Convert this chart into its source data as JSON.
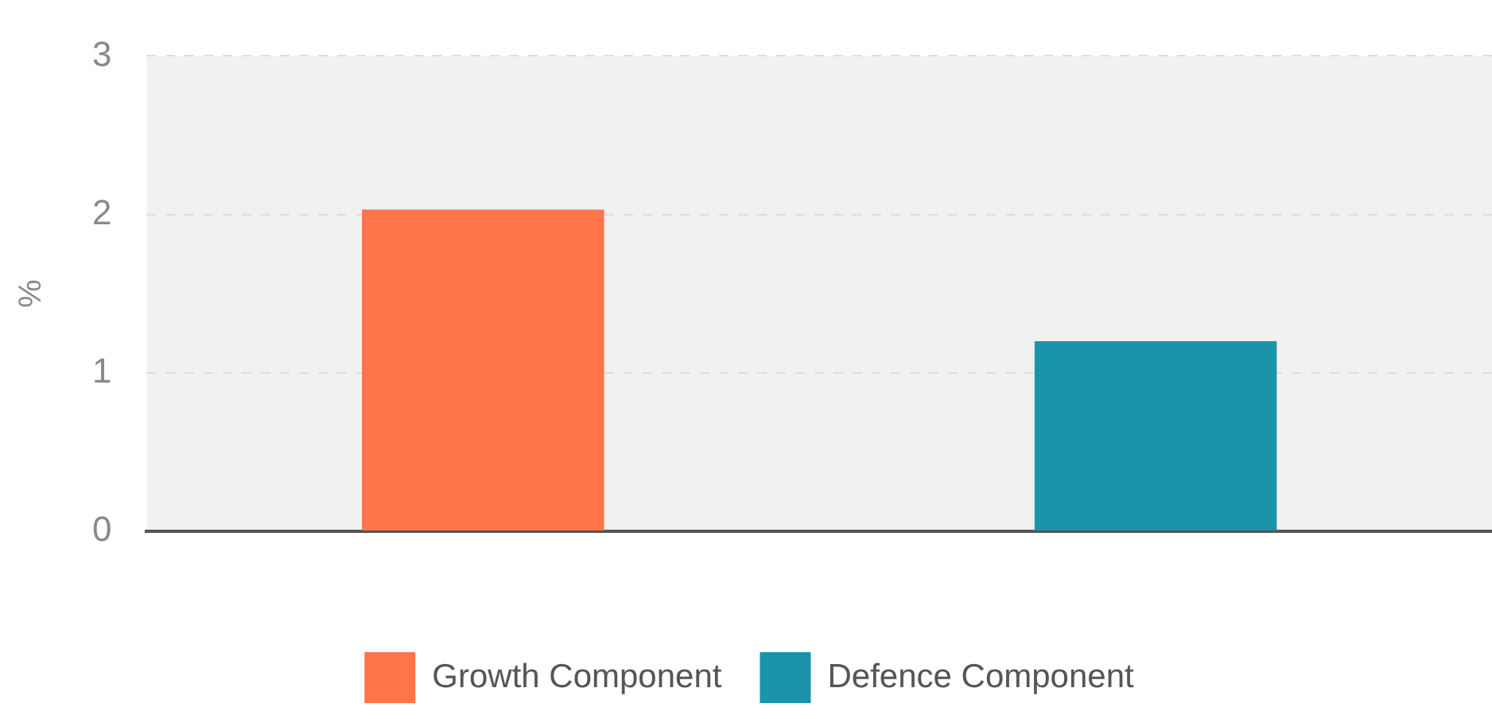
{
  "chart_data": {
    "type": "bar",
    "ylabel": "%",
    "categories": [
      null,
      null
    ],
    "series": [
      {
        "name": "Growth Component",
        "color": "#ff7448",
        "values": [
          2.03,
          null
        ]
      },
      {
        "name": "Defence Component",
        "color": "#1b93a9",
        "values": [
          null,
          1.2
        ]
      }
    ],
    "ylim": [
      0,
      3
    ],
    "yticks": [
      0,
      1,
      2,
      3
    ],
    "grid": "y",
    "legend": "bottom"
  }
}
